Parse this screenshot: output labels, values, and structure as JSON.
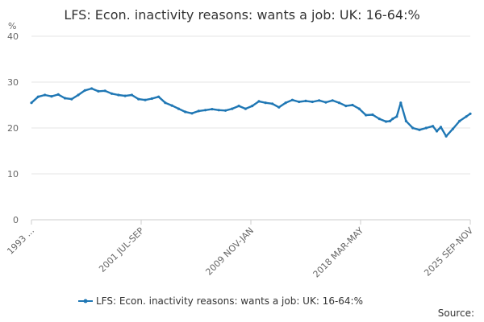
{
  "chart_data": {
    "type": "line",
    "title": "LFS: Econ. inactivity reasons: wants a job: UK: 16-64:%",
    "ylabel": "%",
    "xlabel": "",
    "ylim": [
      0,
      40
    ],
    "yticks": [
      0,
      10,
      20,
      30,
      40
    ],
    "xticks": [
      "1993 ...",
      "2001 JUL-SEP",
      "2009 NOV-JAN",
      "2018 MAR-MAY",
      "2025 SEP-NOV"
    ],
    "grid": true,
    "legend_position": "bottom",
    "series": [
      {
        "name": "LFS: Econ. inactivity reasons: wants a job: UK: 16-64:%",
        "color": "#1f77b4",
        "x": [
          1993.0,
          1993.5,
          1994.0,
          1994.5,
          1995.0,
          1995.5,
          1996.0,
          1996.5,
          1997.0,
          1997.5,
          1998.0,
          1998.5,
          1999.0,
          1999.5,
          2000.0,
          2000.5,
          2001.0,
          2001.5,
          2002.0,
          2002.5,
          2003.0,
          2003.5,
          2004.0,
          2004.5,
          2005.0,
          2005.5,
          2006.0,
          2006.5,
          2007.0,
          2007.5,
          2008.0,
          2008.5,
          2009.0,
          2009.5,
          2010.0,
          2010.5,
          2011.0,
          2011.5,
          2012.0,
          2012.5,
          2013.0,
          2013.5,
          2014.0,
          2014.5,
          2015.0,
          2015.5,
          2016.0,
          2016.5,
          2017.0,
          2017.5,
          2018.0,
          2018.5,
          2019.0,
          2019.5,
          2019.8,
          2020.0,
          2020.3,
          2020.6,
          2021.0,
          2021.5,
          2022.0,
          2022.5,
          2023.0,
          2023.3,
          2023.6,
          2024.0,
          2024.5,
          2025.0,
          2025.5,
          2025.8
        ],
        "values": [
          25.5,
          26.8,
          27.2,
          26.9,
          27.3,
          26.5,
          26.3,
          27.2,
          28.2,
          28.6,
          28.0,
          28.1,
          27.5,
          27.2,
          27.0,
          27.2,
          26.3,
          26.1,
          26.4,
          26.8,
          25.5,
          24.9,
          24.2,
          23.5,
          23.2,
          23.7,
          23.9,
          24.1,
          23.9,
          23.8,
          24.2,
          24.8,
          24.2,
          24.8,
          25.8,
          25.5,
          25.3,
          24.5,
          25.5,
          26.1,
          25.7,
          25.9,
          25.7,
          26.0,
          25.6,
          26.0,
          25.5,
          24.8,
          25.0,
          24.2,
          22.8,
          22.9,
          22.0,
          21.4,
          21.5,
          22.0,
          22.5,
          25.5,
          21.5,
          20.0,
          19.6,
          20.0,
          20.4,
          19.3,
          20.2,
          18.2,
          19.8,
          21.5,
          22.5,
          23.1
        ]
      }
    ],
    "source_label": "Source:"
  }
}
